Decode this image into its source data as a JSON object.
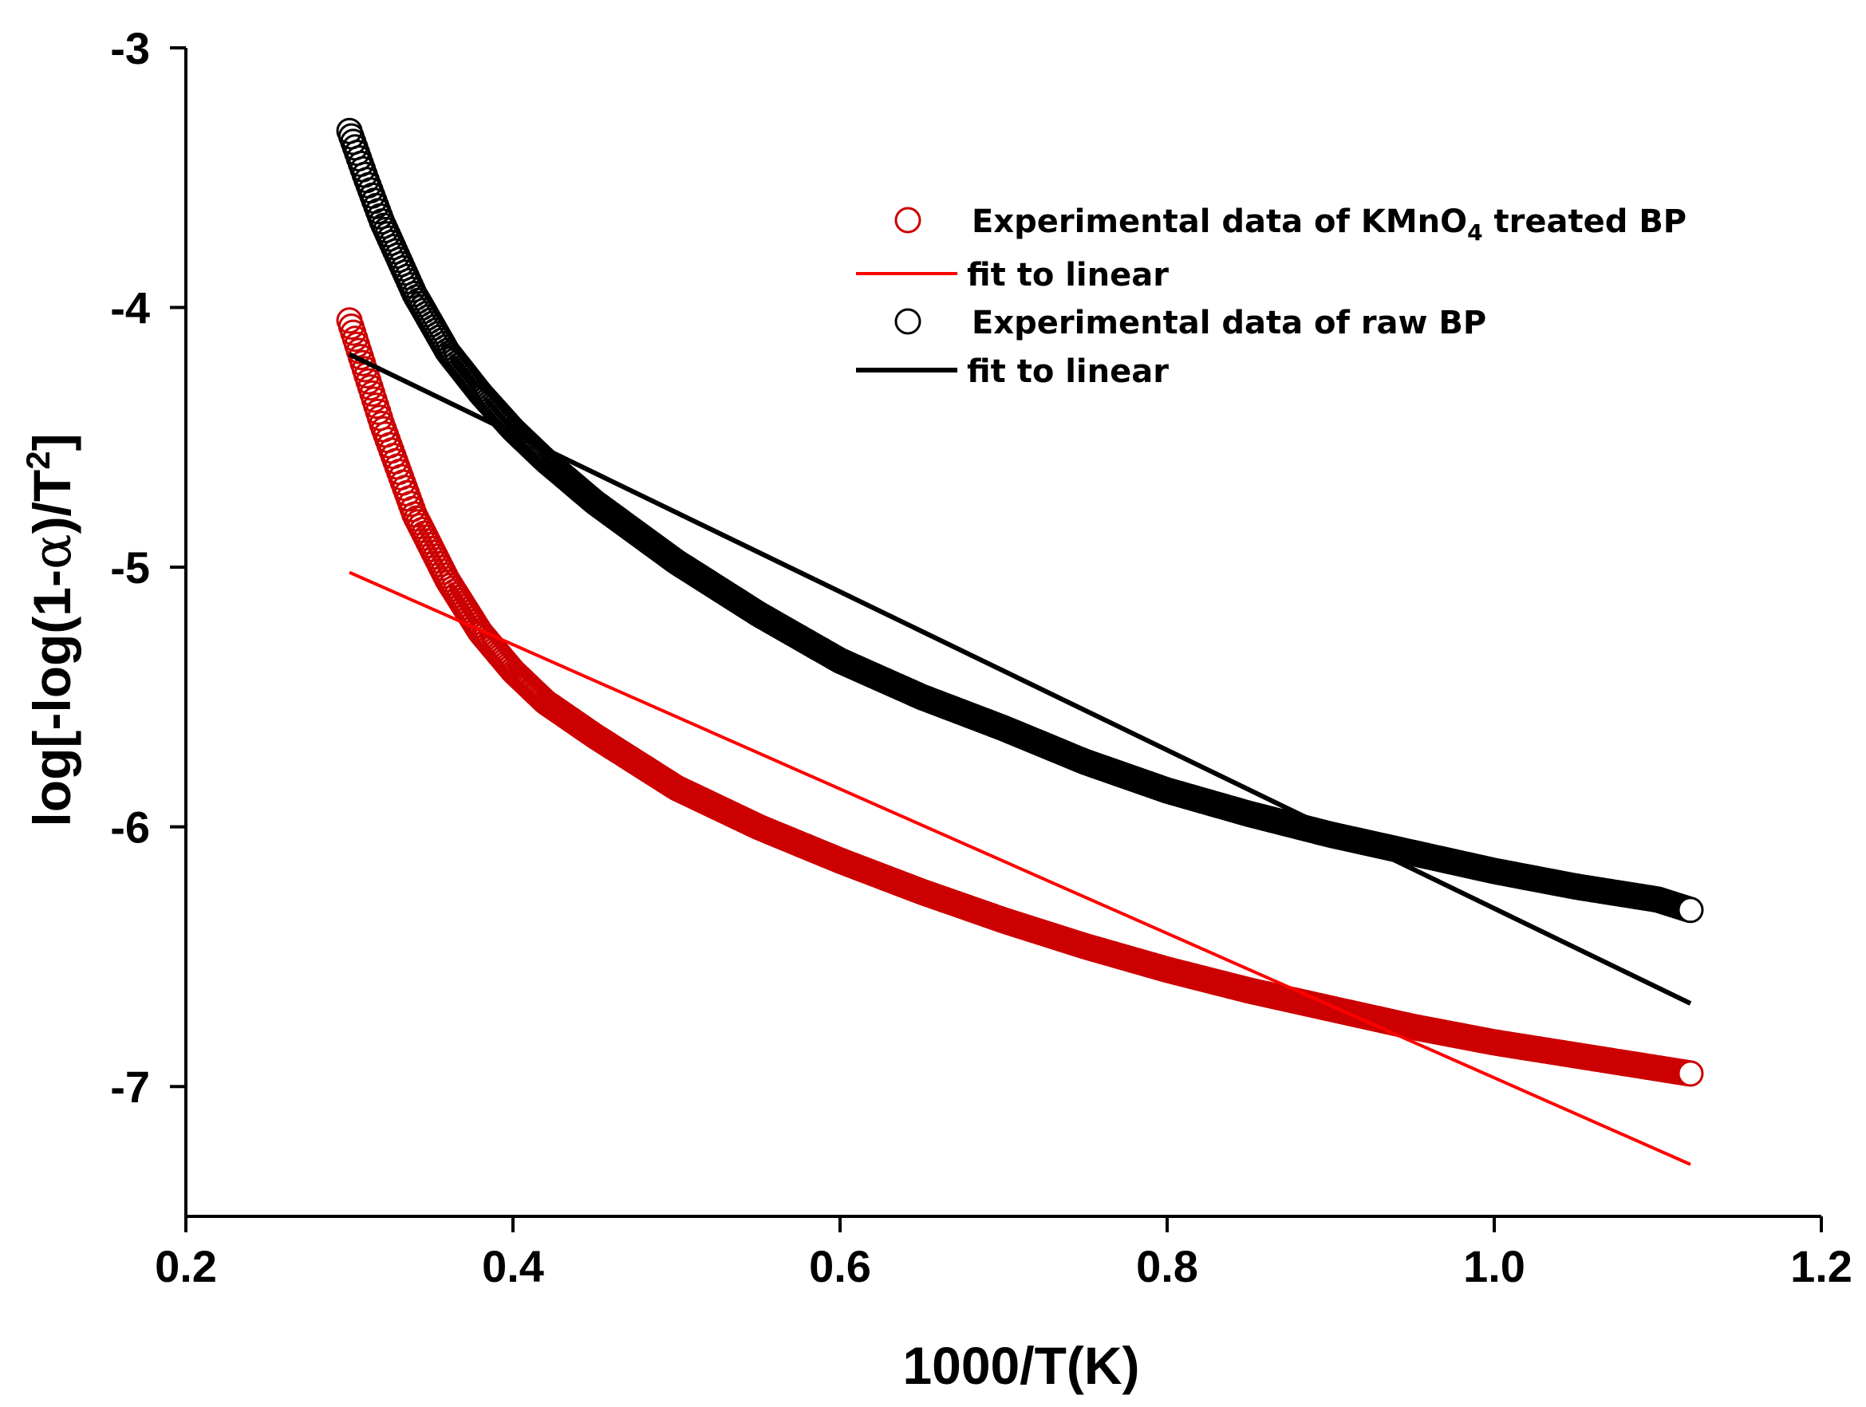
{
  "chart_data": {
    "type": "scatter",
    "title": "",
    "xlabel": "1000/T(K)",
    "ylabel_parts": [
      "log[-log(1-",
      "α",
      ")/T",
      "2",
      "]"
    ],
    "xlim": [
      0.2,
      1.2
    ],
    "ylim": [
      -7.5,
      -3
    ],
    "x_ticks": [
      0.2,
      0.4,
      0.6,
      0.8,
      1.0,
      1.2
    ],
    "x_tick_labels": [
      "0.2",
      "0.4",
      "0.6",
      "0.8",
      "1.0",
      "1.2"
    ],
    "y_ticks": [
      -3,
      -4,
      -5,
      -6,
      -7
    ],
    "y_tick_labels": [
      "-3",
      "-4",
      "-5",
      "-6",
      "-7"
    ],
    "legend_position": "top-right",
    "legend": [
      {
        "label_parts": [
          "Experimental data of KMnO",
          "4",
          " treated BP"
        ],
        "marker": "circle",
        "color": "#cc0000",
        "series": "kmno4_data"
      },
      {
        "label_parts": [
          "fit to linear"
        ],
        "marker": "line",
        "color": "#ff0000",
        "series": "kmno4_fit"
      },
      {
        "label_parts": [
          "Experimental data of raw BP"
        ],
        "marker": "circle",
        "color": "#000000",
        "series": "raw_data"
      },
      {
        "label_parts": [
          "fit to linear"
        ],
        "marker": "line",
        "color": "#000000",
        "series": "raw_fit"
      }
    ],
    "series": [
      {
        "name": "Experimental data of KMnO4 treated BP",
        "id": "kmno4_data",
        "kind": "scatter",
        "color": "#cc0000",
        "x": [
          0.3,
          0.31,
          0.32,
          0.34,
          0.36,
          0.38,
          0.4,
          0.42,
          0.45,
          0.5,
          0.55,
          0.6,
          0.65,
          0.7,
          0.75,
          0.8,
          0.85,
          0.9,
          0.95,
          1.0,
          1.05,
          1.1,
          1.12
        ],
        "y": [
          -4.05,
          -4.25,
          -4.45,
          -4.8,
          -5.05,
          -5.25,
          -5.4,
          -5.52,
          -5.65,
          -5.85,
          -6.0,
          -6.13,
          -6.25,
          -6.36,
          -6.46,
          -6.55,
          -6.63,
          -6.7,
          -6.77,
          -6.83,
          -6.88,
          -6.93,
          -6.95
        ]
      },
      {
        "name": "fit to linear",
        "id": "kmno4_fit",
        "kind": "line",
        "color": "#ff0000",
        "x": [
          0.3,
          1.12
        ],
        "y": [
          -5.02,
          -7.3
        ]
      },
      {
        "name": "Experimental data of raw BP",
        "id": "raw_data",
        "kind": "scatter",
        "color": "#000000",
        "x": [
          0.3,
          0.31,
          0.32,
          0.34,
          0.36,
          0.38,
          0.4,
          0.42,
          0.45,
          0.5,
          0.55,
          0.6,
          0.65,
          0.7,
          0.75,
          0.8,
          0.85,
          0.9,
          0.95,
          1.0,
          1.05,
          1.1,
          1.12
        ],
        "y": [
          -3.32,
          -3.5,
          -3.67,
          -3.95,
          -4.17,
          -4.33,
          -4.47,
          -4.59,
          -4.75,
          -4.98,
          -5.18,
          -5.36,
          -5.5,
          -5.62,
          -5.75,
          -5.86,
          -5.95,
          -6.03,
          -6.1,
          -6.17,
          -6.23,
          -6.28,
          -6.32
        ]
      },
      {
        "name": "fit to linear",
        "id": "raw_fit",
        "kind": "line",
        "color": "#000000",
        "x": [
          0.3,
          1.12
        ],
        "y": [
          -4.18,
          -6.68
        ]
      }
    ]
  }
}
